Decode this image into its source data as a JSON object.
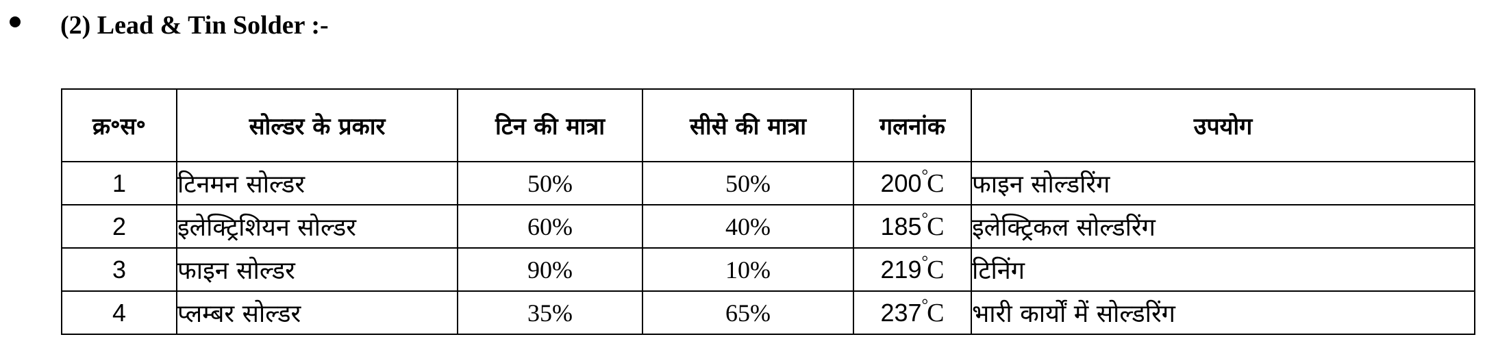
{
  "heading": {
    "text": "(2) Lead & Tin Solder :-"
  },
  "table": {
    "headers": [
      "क्र॰स॰",
      "सोल्डर के प्रकार",
      "टिन की मात्रा",
      "सीसे की मात्रा",
      "गलनांक",
      "उपयोग"
    ],
    "degree_symbol": "°",
    "unit": "C",
    "rows": [
      {
        "sn": "1",
        "type": "टिनमन सोल्डर",
        "tin": "50%",
        "lead": "50%",
        "melting": "200",
        "use": "फाइन सोल्डरिंग"
      },
      {
        "sn": "2",
        "type": "इलेक्ट्रिशियन सोल्डर",
        "tin": "60%",
        "lead": "40%",
        "melting": "185",
        "use": "इलेक्ट्रिकल सोल्डरिंग"
      },
      {
        "sn": "3",
        "type": "फाइन सोल्डर",
        "tin": "90%",
        "lead": "10%",
        "melting": "219",
        "use": "टिनिंग"
      },
      {
        "sn": "4",
        "type": "प्लम्बर सोल्डर",
        "tin": "35%",
        "lead": "65%",
        "melting": "237",
        "use": "भारी कार्यों में सोल्डरिंग"
      }
    ]
  }
}
